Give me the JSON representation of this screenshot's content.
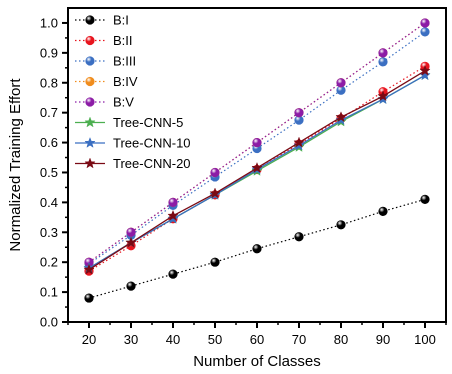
{
  "chart_data": {
    "type": "line",
    "xlabel": "Number of Classes",
    "ylabel": "Normalized Training Effort",
    "xlim": [
      15,
      105
    ],
    "ylim": [
      0.0,
      1.05
    ],
    "xticks": [
      20,
      30,
      40,
      50,
      60,
      70,
      80,
      90,
      100
    ],
    "yticks": [
      0.0,
      0.1,
      0.2,
      0.3,
      0.4,
      0.5,
      0.6,
      0.7,
      0.8,
      0.9,
      1.0
    ],
    "xtick_labels": [
      "20",
      "30",
      "40",
      "50",
      "60",
      "70",
      "80",
      "90",
      "100"
    ],
    "ytick_labels": [
      "0.0",
      "0.1",
      "0.2",
      "0.3",
      "0.4",
      "0.5",
      "0.6",
      "0.7",
      "0.8",
      "0.9",
      "1.0"
    ],
    "grid": false,
    "legend_position": "top-left",
    "x": [
      20,
      30,
      40,
      50,
      60,
      70,
      80,
      90,
      100
    ],
    "series": [
      {
        "name": "B:I",
        "color": "#000000",
        "style": "dotted",
        "marker": "circle",
        "values": [
          0.08,
          0.12,
          0.16,
          0.2,
          0.245,
          0.285,
          0.325,
          0.37,
          0.41
        ]
      },
      {
        "name": "B:II",
        "color": "#e8141e",
        "style": "dotted",
        "marker": "circle",
        "values": [
          0.17,
          0.255,
          0.345,
          0.425,
          0.51,
          0.595,
          0.68,
          0.77,
          0.855
        ]
      },
      {
        "name": "B:III",
        "color": "#3b6fc2",
        "style": "dotted",
        "marker": "circle",
        "values": [
          0.195,
          0.29,
          0.39,
          0.485,
          0.58,
          0.675,
          0.775,
          0.87,
          0.97
        ]
      },
      {
        "name": "B:IV",
        "color": "#f08c1c",
        "style": "dotted",
        "marker": "circle",
        "values": [
          0.2,
          0.3,
          0.4,
          0.5,
          0.6,
          0.7,
          0.8,
          0.9,
          1.0
        ]
      },
      {
        "name": "B:V",
        "color": "#8c1ca6",
        "style": "dotted",
        "marker": "circle",
        "values": [
          0.2,
          0.3,
          0.4,
          0.5,
          0.6,
          0.7,
          0.8,
          0.9,
          1.0
        ]
      },
      {
        "name": "Tree-CNN-5",
        "color": "#4caf50",
        "style": "solid",
        "marker": "star",
        "values": [
          0.18,
          0.265,
          0.345,
          0.425,
          0.505,
          0.585,
          0.67,
          0.745,
          0.825
        ]
      },
      {
        "name": "Tree-CNN-10",
        "color": "#3b6fc2",
        "style": "solid",
        "marker": "star",
        "values": [
          0.18,
          0.265,
          0.345,
          0.425,
          0.51,
          0.59,
          0.675,
          0.745,
          0.825
        ]
      },
      {
        "name": "Tree-CNN-20",
        "color": "#7a0a14",
        "style": "solid",
        "marker": "star",
        "values": [
          0.175,
          0.265,
          0.355,
          0.43,
          0.515,
          0.6,
          0.685,
          0.755,
          0.84
        ]
      }
    ]
  }
}
